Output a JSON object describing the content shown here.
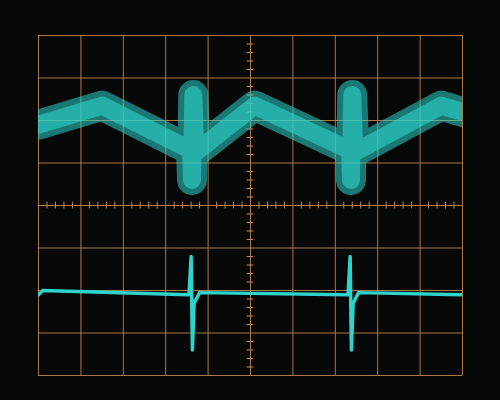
{
  "chart_data": {
    "type": "line",
    "xlim": [
      0,
      10
    ],
    "ylim": [
      -4,
      4
    ],
    "xticks": [
      0,
      1,
      2,
      3,
      4,
      5,
      6,
      7,
      8,
      9,
      10
    ],
    "yticks": [
      -4,
      -3,
      -2,
      -1,
      0,
      1,
      2,
      3,
      4
    ],
    "grid": true,
    "tick_labels": false,
    "series": [
      {
        "color": "#2ed3cc",
        "line_style": "band",
        "x": [
          0,
          1.5,
          3.6,
          3.62,
          3.65,
          3.7,
          5.1,
          7.35,
          7.37,
          7.4,
          7.45,
          9.5,
          10
        ],
        "values": [
          1.9,
          2.35,
          1.3,
          0.6,
          2.6,
          1.25,
          2.35,
          1.3,
          0.6,
          2.6,
          1.25,
          2.35,
          2.2
        ]
      },
      {
        "color": "#2ed3cc",
        "line_style": "solid",
        "x": [
          0,
          0.1,
          3.55,
          3.6,
          3.63,
          3.67,
          3.8,
          7.3,
          7.35,
          7.38,
          7.42,
          7.55,
          10
        ],
        "values": [
          -2.1,
          -2.0,
          -2.1,
          -1.2,
          -3.4,
          -2.3,
          -2.05,
          -2.1,
          -1.2,
          -3.4,
          -2.3,
          -2.05,
          -2.1
        ]
      }
    ]
  }
}
